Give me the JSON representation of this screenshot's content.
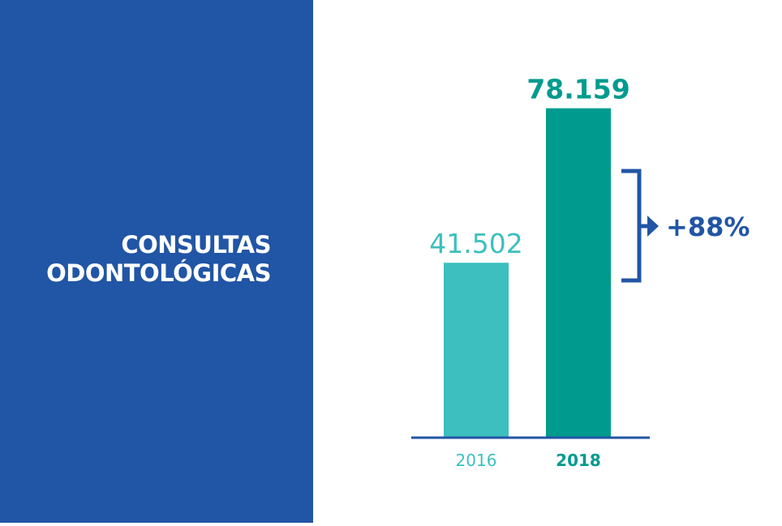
{
  "title_lines": [
    "CONSULTAS",
    "ODONTOLÓGICAS"
  ],
  "colors": {
    "panel": "#2155a5",
    "bar_2016": "#3cbfbe",
    "bar_2018": "#009b8e",
    "accent": "#2155a5"
  },
  "chart_data": {
    "type": "bar",
    "categories": [
      "2016",
      "2018"
    ],
    "values": [
      41502,
      78159
    ],
    "value_labels": [
      "41.502",
      "78.159"
    ],
    "ylim": [
      0,
      85000
    ],
    "annotation": "+88%",
    "grid": false,
    "legend": "none"
  }
}
